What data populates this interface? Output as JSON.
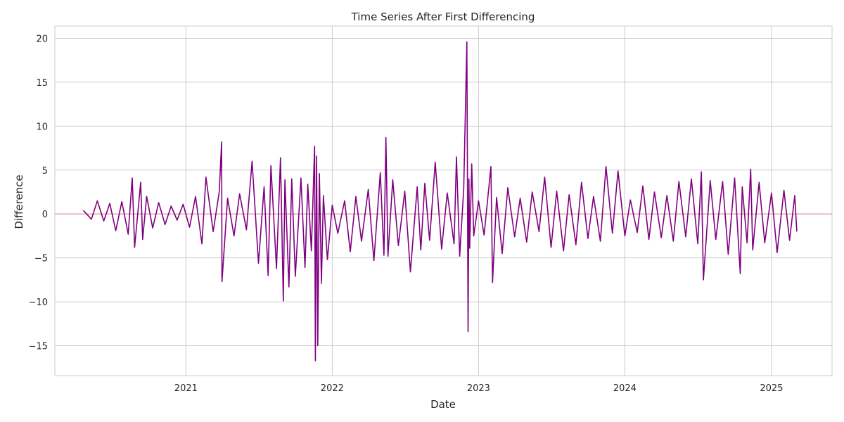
{
  "chart_data": {
    "type": "line",
    "title": "Time Series After First Differencing",
    "xlabel": "Date",
    "ylabel": "Difference",
    "x_range": [
      "2020-02-09",
      "2025-06-01"
    ],
    "ylim": [
      -18.4,
      21.4
    ],
    "x_ticks": [
      {
        "date": "2021-01-01",
        "label": "2021"
      },
      {
        "date": "2022-01-01",
        "label": "2022"
      },
      {
        "date": "2023-01-01",
        "label": "2023"
      },
      {
        "date": "2024-01-01",
        "label": "2024"
      },
      {
        "date": "2025-01-01",
        "label": "2025"
      }
    ],
    "y_ticks": [
      {
        "value": 20,
        "label": "20"
      },
      {
        "value": 15,
        "label": "15"
      },
      {
        "value": 10,
        "label": "10"
      },
      {
        "value": 5,
        "label": "5"
      },
      {
        "value": 0,
        "label": "0"
      },
      {
        "value": -5,
        "label": "−5"
      },
      {
        "value": -10,
        "label": "−10"
      },
      {
        "value": -15,
        "label": "−15"
      }
    ],
    "grid": true,
    "reference_line": {
      "y": 0,
      "color": "#e6a6a6"
    },
    "series_style": {
      "color": "#800080"
    },
    "series": [
      {
        "x": [
          "2020-04-20",
          "2020-05-10",
          "2020-05-25",
          "2020-06-10",
          "2020-06-25",
          "2020-07-10",
          "2020-07-25",
          "2020-08-10",
          "2020-08-20",
          "2020-08-26",
          "2020-09-10",
          "2020-09-15",
          "2020-09-25",
          "2020-10-10",
          "2020-10-25",
          "2020-11-10",
          "2020-11-25",
          "2020-12-10",
          "2020-12-25",
          "2021-01-10",
          "2021-01-25",
          "2021-02-10",
          "2021-02-20",
          "2021-03-10",
          "2021-03-25",
          "2021-03-31",
          "2021-04-01",
          "2021-04-15",
          "2021-05-01",
          "2021-05-15",
          "2021-06-01",
          "2021-06-15",
          "2021-07-01",
          "2021-07-15",
          "2021-07-25",
          "2021-08-01",
          "2021-08-15",
          "2021-08-25",
          "2021-09-01",
          "2021-09-05",
          "2021-09-15",
          "2021-09-22",
          "2021-10-01",
          "2021-10-15",
          "2021-10-25",
          "2021-11-01",
          "2021-11-10",
          "2021-11-18",
          "2021-11-20",
          "2021-11-23",
          "2021-11-26",
          "2021-11-30",
          "2021-12-05",
          "2021-12-10",
          "2021-12-20",
          "2022-01-01",
          "2022-01-15",
          "2022-02-01",
          "2022-02-15",
          "2022-03-01",
          "2022-03-15",
          "2022-04-01",
          "2022-04-15",
          "2022-05-01",
          "2022-05-10",
          "2022-05-15",
          "2022-05-20",
          "2022-06-01",
          "2022-06-15",
          "2022-07-01",
          "2022-07-15",
          "2022-08-01",
          "2022-08-10",
          "2022-08-20",
          "2022-09-01",
          "2022-09-15",
          "2022-10-01",
          "2022-10-15",
          "2022-11-01",
          "2022-11-07",
          "2022-11-15",
          "2022-11-25",
          "2022-12-03",
          "2022-12-06",
          "2022-12-08",
          "2022-12-10",
          "2022-12-15",
          "2022-12-20",
          "2023-01-01",
          "2023-01-15",
          "2023-02-01",
          "2023-02-05",
          "2023-02-15",
          "2023-03-01",
          "2023-03-15",
          "2023-04-01",
          "2023-04-15",
          "2023-05-01",
          "2023-05-15",
          "2023-06-01",
          "2023-06-15",
          "2023-07-01",
          "2023-07-15",
          "2023-08-01",
          "2023-08-15",
          "2023-09-01",
          "2023-09-15",
          "2023-10-01",
          "2023-10-15",
          "2023-11-01",
          "2023-11-15",
          "2023-12-01",
          "2023-12-15",
          "2024-01-01",
          "2024-01-15",
          "2024-02-01",
          "2024-02-15",
          "2024-03-01",
          "2024-03-15",
          "2024-04-01",
          "2024-04-15",
          "2024-05-01",
          "2024-05-15",
          "2024-06-01",
          "2024-06-15",
          "2024-07-01",
          "2024-07-10",
          "2024-07-15",
          "2024-08-01",
          "2024-08-15",
          "2024-09-01",
          "2024-09-15",
          "2024-10-01",
          "2024-10-15",
          "2024-10-20",
          "2024-11-01",
          "2024-11-10",
          "2024-11-15",
          "2024-12-01",
          "2024-12-15",
          "2025-01-01",
          "2025-01-15",
          "2025-02-01",
          "2025-02-15",
          "2025-02-28",
          "2025-03-05"
        ],
        "y": [
          0.4,
          -0.6,
          1.5,
          -0.8,
          1.2,
          -1.9,
          1.4,
          -2.3,
          4.1,
          -3.8,
          3.6,
          -2.9,
          2.0,
          -1.6,
          1.3,
          -1.2,
          0.9,
          -0.7,
          1.1,
          -1.5,
          2.0,
          -3.4,
          4.2,
          -2.0,
          2.5,
          8.2,
          -7.7,
          1.8,
          -2.5,
          2.3,
          -1.8,
          6.0,
          -5.6,
          3.1,
          -7.0,
          5.5,
          -6.2,
          6.4,
          -9.9,
          3.9,
          -8.3,
          4.0,
          -7.1,
          4.1,
          -6.1,
          3.4,
          -4.2,
          7.7,
          -16.7,
          6.6,
          -15.0,
          4.6,
          -7.9,
          2.1,
          -5.2,
          1.0,
          -2.2,
          1.5,
          -4.3,
          2.0,
          -3.1,
          2.8,
          -5.3,
          4.7,
          -4.7,
          8.7,
          -4.8,
          3.9,
          -3.6,
          2.6,
          -6.6,
          3.1,
          -4.1,
          3.5,
          -3.0,
          5.9,
          -4.0,
          2.4,
          -3.4,
          6.5,
          -4.8,
          2.8,
          19.6,
          -13.4,
          4.0,
          -3.9,
          5.7,
          -2.5,
          1.5,
          -2.4,
          5.4,
          -7.8,
          1.9,
          -4.5,
          3.0,
          -2.6,
          1.8,
          -3.2,
          2.5,
          -2.0,
          4.2,
          -3.8,
          2.6,
          -4.2,
          2.2,
          -3.5,
          3.6,
          -2.8,
          2.0,
          -3.1,
          5.4,
          -2.2,
          4.9,
          -2.5,
          1.6,
          -2.1,
          3.2,
          -2.9,
          2.5,
          -2.7,
          2.1,
          -3.1,
          3.7,
          -2.6,
          4.0,
          -3.4,
          4.8,
          -7.5,
          3.8,
          -2.9,
          3.7,
          -4.6,
          4.1,
          -6.8,
          3.1,
          -3.3,
          5.1,
          -4.1,
          3.6,
          -3.3,
          2.4,
          -4.4,
          2.7,
          -3.0,
          2.1,
          -2.0
        ]
      }
    ]
  }
}
